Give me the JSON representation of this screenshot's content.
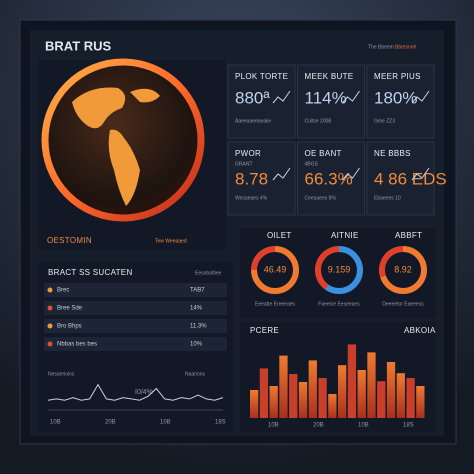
{
  "header": {
    "title": "BRAT RUS",
    "links": [
      "The Bbeem",
      "Bbresnrel"
    ]
  },
  "globe_panel": {
    "label": "OESTOMIN",
    "note": "Tew Weeaaed"
  },
  "stat_cards": [
    {
      "label": "PLOK TORTE",
      "value": "880ª",
      "sub": "Aaeeaaeeaeaiie"
    },
    {
      "label": "MEEK BUTE",
      "value": "114%",
      "sub": "Coltse 2008"
    },
    {
      "label": "MEER PIUS",
      "value": "180%",
      "sub": "Gme ZZ3"
    },
    {
      "label": "PWOR",
      "note": "GRANT",
      "value": "8.78",
      "sub": "Wesaeaes 4%"
    },
    {
      "label": "OE BANT",
      "note": "4BGS",
      "value": "66.3%",
      "sub": "Ceeaaees 8%"
    },
    {
      "label": "NE BBBS",
      "note": "",
      "value": "4 86 EDS",
      "sub": "Ebaeees 10"
    }
  ],
  "donuts": [
    {
      "label": "OILET",
      "value": "46.49",
      "share": 75,
      "caption": "Eeeatte Ereeeaes"
    },
    {
      "label": "AITNIE",
      "value": "9.159",
      "share": 60,
      "caption": "Faeeice Eeseeaes"
    },
    {
      "label": "ABBFT",
      "value": "8.92",
      "share": 70,
      "caption": "Deeeetor Eaeeess"
    }
  ],
  "list_panel": {
    "title": "BRACT SS SUCATEN",
    "tag": "Eesobattiee",
    "rows": [
      {
        "label": "Brec",
        "value": "TAB7"
      },
      {
        "label": "Bree Sde",
        "value": "14%"
      },
      {
        "label": "Bro Bhps",
        "value": "11.3%"
      },
      {
        "label": "Nbbas bes bes",
        "value": "10%"
      }
    ],
    "line_caption": "Nesaerioins",
    "line_note": "Naarions",
    "line_annotation": "I0/4%",
    "line": [
      6,
      7,
      6,
      8,
      6,
      7,
      18,
      7,
      6,
      8,
      7,
      6,
      9,
      15,
      7,
      6,
      8,
      7,
      10,
      7,
      6,
      8
    ],
    "xlabels": [
      "10B",
      "20B",
      "10B",
      "18S"
    ]
  },
  "bar_chart": {
    "title": "PCERE",
    "right_label": "ABKOIA",
    "values": [
      35,
      62,
      40,
      78,
      55,
      45,
      72,
      50,
      30,
      66,
      92,
      60,
      82,
      46,
      70,
      56,
      50,
      40
    ],
    "xlabels": [
      "10B",
      "20B",
      "10B",
      "18S"
    ]
  }
}
